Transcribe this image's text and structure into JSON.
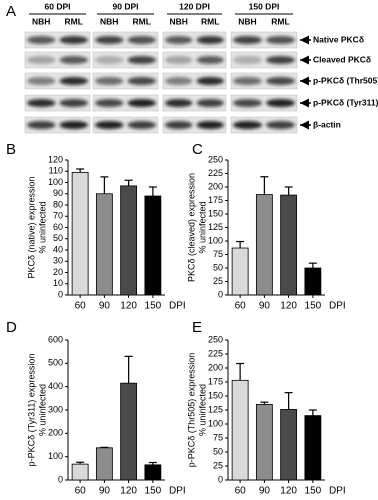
{
  "blot": {
    "panel_label": "A",
    "groups": [
      "60 DPI",
      "90 DPI",
      "120 DPI",
      "150 DPI"
    ],
    "lanes": [
      "NBH",
      "RML"
    ],
    "bands": [
      "Native PKCδ",
      "Cleaved PKCδ",
      "p-PKCδ (Thr505)",
      "p-PKCδ (Tyr311)",
      "β-actin"
    ]
  },
  "chart_data": [
    {
      "type": "bar",
      "panel_label": "B",
      "ylabel": [
        "PKCδ (native) expression",
        "% uninfected"
      ],
      "xlabel": "DPI",
      "categories": [
        "60",
        "90",
        "120",
        "150"
      ],
      "values": [
        109,
        90,
        97,
        88
      ],
      "errors": [
        3,
        15,
        5,
        8
      ],
      "colors": [
        "#d9d9d9",
        "#8c8c8c",
        "#4a4a4a",
        "#000000"
      ],
      "ylim": [
        0,
        120
      ],
      "yticks": [
        0,
        10,
        20,
        30,
        40,
        50,
        60,
        70,
        80,
        90,
        100,
        110,
        120
      ]
    },
    {
      "type": "bar",
      "panel_label": "C",
      "ylabel": [
        "PKCδ (cleaved) expression",
        "% uninfected"
      ],
      "xlabel": "DPI",
      "categories": [
        "60",
        "90",
        "120",
        "150"
      ],
      "values": [
        87,
        186,
        185,
        50
      ],
      "errors": [
        12,
        33,
        15,
        9
      ],
      "colors": [
        "#d9d9d9",
        "#8c8c8c",
        "#4a4a4a",
        "#000000"
      ],
      "ylim": [
        0,
        250
      ],
      "yticks": [
        0,
        25,
        50,
        75,
        100,
        125,
        150,
        175,
        200,
        225,
        250
      ]
    },
    {
      "type": "bar",
      "panel_label": "D",
      "ylabel": [
        "p-PKCδ (Tyr311) expression",
        "% uninfected"
      ],
      "xlabel": "DPI",
      "categories": [
        "60",
        "90",
        "120",
        "150"
      ],
      "values": [
        68,
        138,
        415,
        65
      ],
      "errors": [
        8,
        2,
        115,
        10
      ],
      "colors": [
        "#d9d9d9",
        "#8c8c8c",
        "#4a4a4a",
        "#000000"
      ],
      "ylim": [
        0,
        600
      ],
      "yticks": [
        0,
        100,
        200,
        300,
        400,
        500,
        600
      ]
    },
    {
      "type": "bar",
      "panel_label": "E",
      "ylabel": [
        "p-PKCδ (Thr505) expression",
        "% uninfected"
      ],
      "xlabel": "DPI",
      "categories": [
        "60",
        "90",
        "120",
        "150"
      ],
      "values": [
        178,
        135,
        126,
        115
      ],
      "errors": [
        30,
        4,
        30,
        10
      ],
      "colors": [
        "#d9d9d9",
        "#8c8c8c",
        "#4a4a4a",
        "#000000"
      ],
      "ylim": [
        0,
        250
      ],
      "yticks": [
        0,
        25,
        50,
        75,
        100,
        125,
        150,
        175,
        200,
        225,
        250
      ]
    }
  ]
}
